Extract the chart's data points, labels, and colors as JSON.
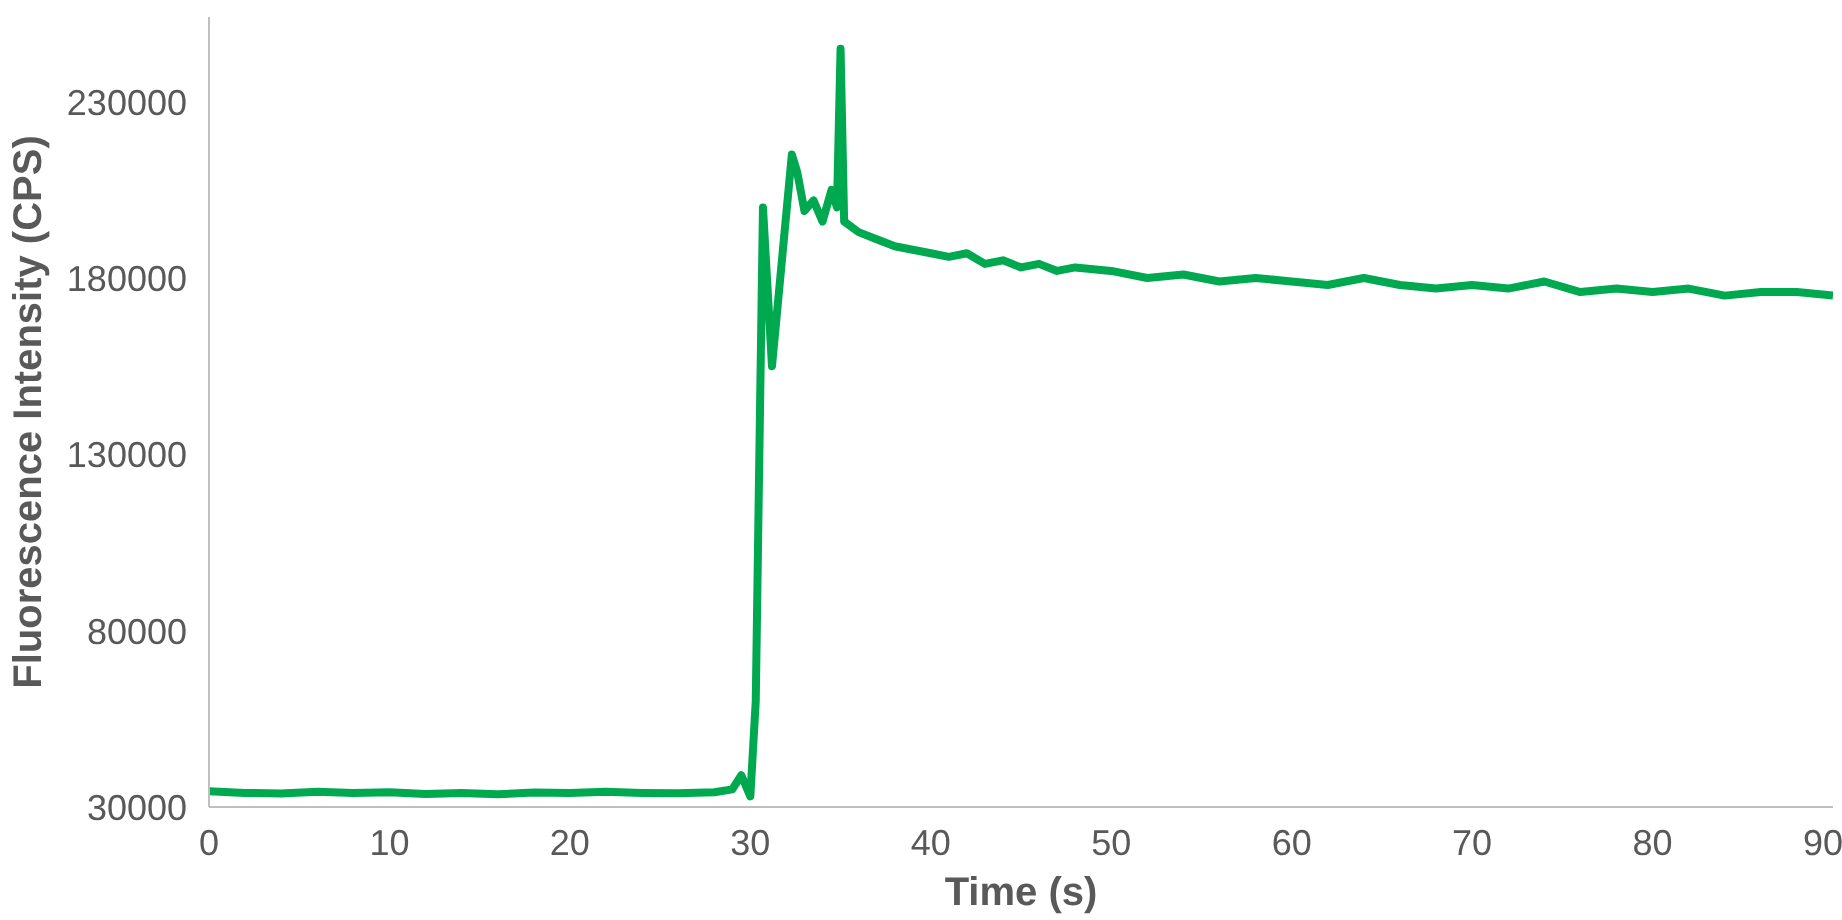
{
  "chart_data": {
    "type": "line",
    "xlabel": "Time (s)",
    "ylabel": "Fluorescence Intensity (CPS)",
    "xlim": [
      0,
      90
    ],
    "xticks": [
      0,
      10,
      20,
      30,
      40,
      50,
      60,
      70,
      80,
      90
    ],
    "ylim": [
      30000,
      254000
    ],
    "yticks": [
      30000,
      80000,
      130000,
      180000,
      230000
    ],
    "grid": false,
    "marker": "none",
    "line_style": "solid",
    "series": [
      {
        "color": "#00a84f",
        "x": [
          0,
          2,
          4,
          6,
          8,
          10,
          12,
          14,
          16,
          18,
          20,
          22,
          24,
          26,
          28,
          29,
          29.5,
          30,
          30.3,
          30.7,
          31.2,
          32.3,
          32.6,
          33,
          33.5,
          34,
          34.5,
          34.8,
          35,
          35.2,
          36,
          37,
          38,
          39,
          40,
          41,
          42,
          43,
          44,
          45,
          46,
          47,
          48,
          50,
          52,
          54,
          56,
          58,
          60,
          62,
          64,
          66,
          68,
          70,
          72,
          74,
          76,
          78,
          80,
          82,
          84,
          86,
          88,
          90
        ],
        "values": [
          34500,
          34000,
          33800,
          34300,
          34000,
          34200,
          33700,
          34000,
          33600,
          34100,
          34000,
          34300,
          34000,
          33900,
          34200,
          35000,
          39000,
          33000,
          60000,
          200000,
          155000,
          215000,
          210000,
          199000,
          202000,
          196000,
          205000,
          200000,
          245000,
          196000,
          193000,
          191000,
          189000,
          188000,
          187000,
          186000,
          187000,
          184000,
          185000,
          183000,
          184000,
          182000,
          183000,
          182000,
          180000,
          181000,
          179000,
          180000,
          179000,
          178000,
          180000,
          178000,
          177000,
          178000,
          177000,
          179000,
          176000,
          177000,
          176000,
          177000,
          175000,
          176000,
          176000,
          175000
        ]
      }
    ]
  }
}
